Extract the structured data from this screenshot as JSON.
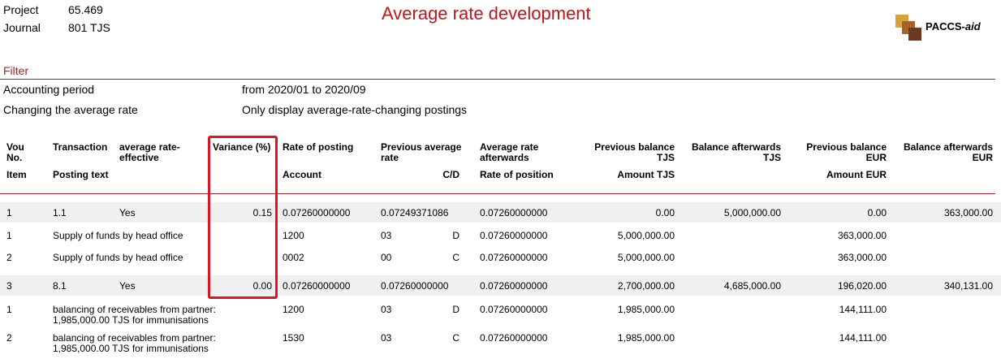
{
  "header": {
    "project_label": "Project",
    "project_value": "65.469",
    "journal_label": "Journal",
    "journal_value": "801 TJS",
    "title": "Average rate development",
    "logo_name": "PACCS-",
    "logo_suffix": "aid"
  },
  "filter": {
    "title": "Filter",
    "period_label": "Accounting period",
    "period_value": "from 2020/01 to 2020/09",
    "rate_label": "Changing the average rate",
    "rate_value": "Only display average-rate-changing postings"
  },
  "columns": {
    "vou": "Vou",
    "no": "No.",
    "item": "Item",
    "transaction": "Transaction",
    "posting_text": "Posting text",
    "avg_effective_1": "average rate-",
    "avg_effective_2": "effective",
    "variance": "Variance (%)",
    "rate_of_posting": "Rate of posting",
    "account": "Account",
    "prev_avg_1": "Previous average",
    "prev_avg_2": "rate",
    "cd": "C/D",
    "avg_after_1": "Average rate",
    "avg_after_2": "afterwards",
    "rate_of_position": "Rate of position",
    "prev_bal_tjs_1": "Previous balance",
    "prev_bal_tjs_2": "TJS",
    "amount_tjs": "Amount TJS",
    "bal_after_tjs_1": "Balance afterwards",
    "bal_after_tjs_2": "TJS",
    "prev_bal_eur_1": "Previous balance",
    "prev_bal_eur_2": "EUR",
    "amount_eur": "Amount EUR",
    "bal_after_eur_1": "Balance afterwards",
    "bal_after_eur_2": "EUR"
  },
  "rows": {
    "v1": {
      "no": "1",
      "transaction": "1.1",
      "effective": "Yes",
      "variance": "0.15",
      "rate_of_posting": "0.07260000000",
      "prev_avg": "0.07249371086",
      "avg_after": "0.07260000000",
      "prev_bal_tjs": "0.00",
      "bal_after_tjs": "5,000,000.00",
      "prev_bal_eur": "0.00",
      "bal_after_eur": "363,000.00"
    },
    "i1": {
      "item": "1",
      "text": "Supply of funds by head office",
      "account": "1200",
      "prev": "03",
      "cd": "D",
      "rate_pos": "0.07260000000",
      "amount_tjs": "5,000,000.00",
      "amount_eur": "363,000.00"
    },
    "i2": {
      "item": "2",
      "text": "Supply of funds by head office",
      "account": "0002",
      "prev": "00",
      "cd": "C",
      "rate_pos": "0.07260000000",
      "amount_tjs": "5,000,000.00",
      "amount_eur": "363,000.00"
    },
    "v2": {
      "no": "3",
      "transaction": "8.1",
      "effective": "Yes",
      "variance": "0.00",
      "rate_of_posting": "0.07260000000",
      "prev_avg": "0.07260000000",
      "avg_after": "0.07260000000",
      "prev_bal_tjs": "2,700,000.00",
      "bal_after_tjs": "4,685,000.00",
      "prev_bal_eur": "196,020.00",
      "bal_after_eur": "340,131.00"
    },
    "i3": {
      "item": "1",
      "text1": "balancing of receivables from partner:",
      "text2": "1,985,000.00 TJS for immunisations",
      "account": "1200",
      "prev": "03",
      "cd": "D",
      "rate_pos": "0.07260000000",
      "amount_tjs": "1,985,000.00",
      "amount_eur": "144,111.00"
    },
    "i4": {
      "item": "2",
      "text1": "balancing of receivables from partner:",
      "text2": "1,985,000.00 TJS for immunisations",
      "account": "1530",
      "prev": "03",
      "cd": "C",
      "rate_pos": "0.07260000000",
      "amount_tjs": "1,985,000.00",
      "amount_eur": "144,111.00"
    }
  },
  "colors": {
    "title": "#c0151b",
    "rule": "#a8222a",
    "highlight": "#e0141e",
    "row_shade": "#f0f0f0"
  }
}
